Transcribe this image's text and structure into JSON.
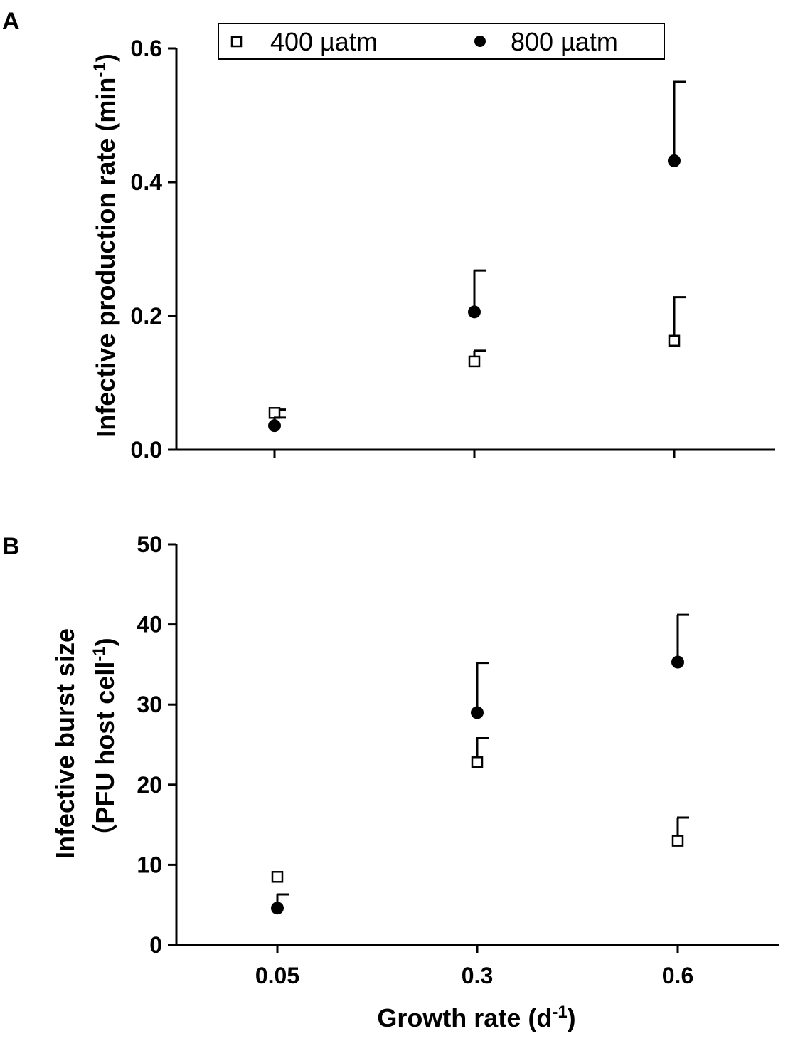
{
  "chart_data": [
    {
      "panel": "A",
      "type": "scatter",
      "categories": [
        "0.05",
        "0.3",
        "0.6"
      ],
      "ylabel": "Infective production rate (min",
      "ylabel_superscript": "-1",
      "ylabel_close": ")",
      "ylim": [
        0,
        0.6
      ],
      "yticks": [
        "0.0",
        "0.2",
        "0.4",
        "0.6"
      ],
      "grid": false,
      "legend": {
        "placement": "top",
        "items": [
          {
            "label": "400 µatm",
            "marker": "open-square"
          },
          {
            "label": "800  µatm",
            "marker": "filled-circle"
          }
        ]
      },
      "series": [
        {
          "name": "400 µatm",
          "marker": "open-square",
          "values": [
            0.055,
            0.132,
            0.163
          ],
          "error_upper": [
            0.06,
            0.148,
            0.228
          ]
        },
        {
          "name": "800  µatm",
          "marker": "filled-circle",
          "values": [
            0.036,
            0.206,
            0.432
          ],
          "error_upper": [
            0.048,
            0.268,
            0.55
          ]
        }
      ]
    },
    {
      "panel": "B",
      "type": "scatter",
      "categories": [
        "0.05",
        "0.3",
        "0.6"
      ],
      "xlabel": "Growth rate (d",
      "xlabel_superscript": "-1",
      "xlabel_close": ")",
      "ylabel_line1": "Infective burst size",
      "ylabel_line2": "（PFU host cell",
      "ylabel_superscript": "-1",
      "ylabel_close": ")",
      "ylim": [
        0,
        50
      ],
      "yticks": [
        "0",
        "10",
        "20",
        "30",
        "40",
        "50"
      ],
      "grid": false,
      "series": [
        {
          "name": "400 µatm",
          "marker": "open-square",
          "values": [
            8.5,
            22.8,
            13.0
          ],
          "error_upper": [
            null,
            25.8,
            15.9
          ]
        },
        {
          "name": "800  µatm",
          "marker": "filled-circle",
          "values": [
            4.6,
            29.0,
            35.3
          ],
          "error_upper": [
            6.3,
            35.2,
            41.2
          ]
        }
      ]
    }
  ],
  "panels": {
    "a_label": "A",
    "b_label": "B"
  }
}
